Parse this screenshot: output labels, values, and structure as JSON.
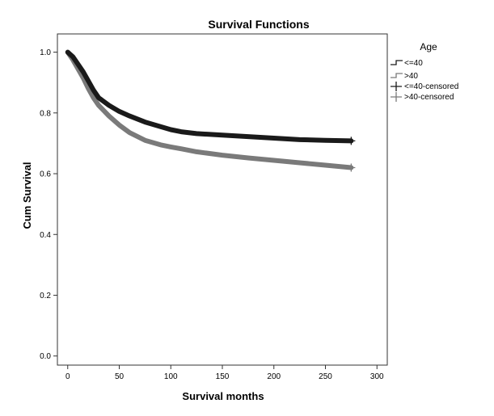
{
  "chart_data": {
    "type": "line",
    "title": "Survival Functions",
    "xlabel": "Survival months",
    "ylabel": "Cum Survival",
    "xlim": [
      -10,
      310
    ],
    "ylim": [
      -0.03,
      1.06
    ],
    "xticks": [
      "0",
      "50",
      "100",
      "150",
      "200",
      "250",
      "300"
    ],
    "xtick_values": [
      0,
      50,
      100,
      150,
      200,
      250,
      300
    ],
    "yticks": [
      "0.0",
      "0.2",
      "0.4",
      "0.6",
      "0.8",
      "1.0"
    ],
    "ytick_values": [
      0.0,
      0.2,
      0.4,
      0.6,
      0.8,
      1.0
    ],
    "grid": false,
    "legend": {
      "title": "Age",
      "position": "top-right outside",
      "entries": [
        "<=40",
        ">40",
        "<=40-censored",
        ">40-censored"
      ]
    },
    "series": [
      {
        "name": "<=40",
        "color": "#1a1a1a",
        "x": [
          0,
          5,
          10,
          15,
          20,
          25,
          30,
          40,
          50,
          60,
          75,
          90,
          100,
          110,
          125,
          150,
          175,
          200,
          225,
          250,
          275
        ],
        "y": [
          1.0,
          0.985,
          0.96,
          0.935,
          0.905,
          0.875,
          0.85,
          0.825,
          0.805,
          0.79,
          0.77,
          0.755,
          0.745,
          0.738,
          0.732,
          0.727,
          0.722,
          0.717,
          0.712,
          0.71,
          0.708
        ]
      },
      {
        "name": ">40",
        "color": "#7a7a7a",
        "x": [
          0,
          5,
          10,
          15,
          20,
          25,
          30,
          40,
          50,
          60,
          75,
          90,
          100,
          110,
          125,
          150,
          175,
          200,
          225,
          250,
          275
        ],
        "y": [
          1.0,
          0.975,
          0.945,
          0.915,
          0.88,
          0.85,
          0.825,
          0.79,
          0.76,
          0.735,
          0.71,
          0.695,
          0.688,
          0.682,
          0.672,
          0.661,
          0.652,
          0.644,
          0.636,
          0.628,
          0.62
        ]
      }
    ]
  }
}
